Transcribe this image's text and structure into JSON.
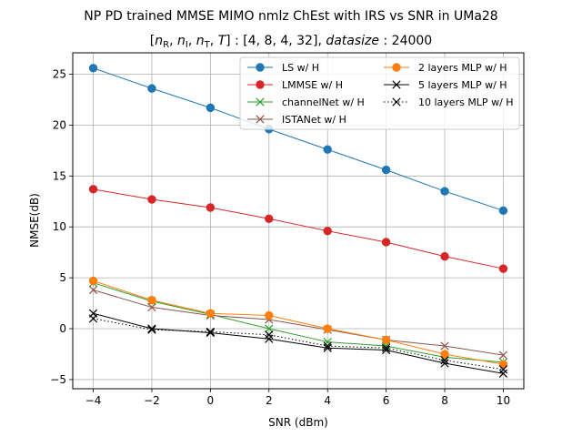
{
  "chart_data": {
    "type": "line",
    "title": "NP PD trained MMSE MIMO nmlz ChEst with IRS vs SNR in UMa28",
    "subtitle": "[n_R, n_I, n_T, T] : [4, 8, 4, 32], datasize : 24000",
    "subtitle_parts": {
      "vars": [
        "n",
        "R",
        "n",
        "I",
        "n",
        "T",
        "T"
      ],
      "values": "[4, 8, 4, 32]",
      "key": "datasize",
      "size": "24000"
    },
    "xlabel": "SNR (dBm)",
    "ylabel": "NMSE(dB)",
    "xlim": [
      -4.7,
      10.7
    ],
    "ylim": [
      -5.9,
      27.1
    ],
    "xticks": [
      -4,
      -2,
      0,
      2,
      4,
      6,
      8,
      10
    ],
    "yticks": [
      -5,
      0,
      5,
      10,
      15,
      20,
      25
    ],
    "grid": true,
    "legend_position": "top-right",
    "x": [
      -4,
      -2,
      0,
      2,
      4,
      6,
      8,
      10
    ],
    "series": [
      {
        "name": "LS w/ H",
        "color": "#1f77b4",
        "marker": "circle",
        "linestyle": "solid",
        "values": [
          25.6,
          23.6,
          21.7,
          19.6,
          17.6,
          15.6,
          13.5,
          11.6
        ]
      },
      {
        "name": "LMMSE w/ H",
        "color": "#d62728",
        "marker": "circle",
        "linestyle": "solid",
        "values": [
          13.7,
          12.7,
          11.9,
          10.8,
          9.6,
          8.5,
          7.1,
          5.9
        ]
      },
      {
        "name": "channelNet w/ H",
        "color": "#2ca02c",
        "marker": "x",
        "linestyle": "solid",
        "values": [
          4.5,
          2.7,
          1.4,
          0.0,
          -1.3,
          -1.7,
          -2.8,
          -3.3
        ]
      },
      {
        "name": "ISTANet w/ H",
        "color": "#8c564b",
        "marker": "x",
        "linestyle": "solid",
        "values": [
          3.8,
          2.1,
          1.3,
          0.9,
          -0.1,
          -1.1,
          -1.7,
          -2.6
        ]
      },
      {
        "name": "2 layers MLP w/ H",
        "color": "#ff7f0e",
        "marker": "circle",
        "linestyle": "solid",
        "values": [
          4.7,
          2.8,
          1.5,
          1.3,
          0.0,
          -1.1,
          -2.5,
          -3.5
        ]
      },
      {
        "name": "5 layers MLP w/ H",
        "color": "#000000",
        "marker": "x",
        "linestyle": "solid",
        "values": [
          1.5,
          0.0,
          -0.4,
          -1.0,
          -1.9,
          -2.1,
          -3.4,
          -4.4
        ]
      },
      {
        "name": "10 layers MLP w/ H",
        "color": "#000000",
        "marker": "x",
        "linestyle": "dotted",
        "values": [
          1.0,
          -0.1,
          -0.3,
          -0.6,
          -1.7,
          -1.9,
          -3.1,
          -4.0
        ]
      }
    ]
  }
}
